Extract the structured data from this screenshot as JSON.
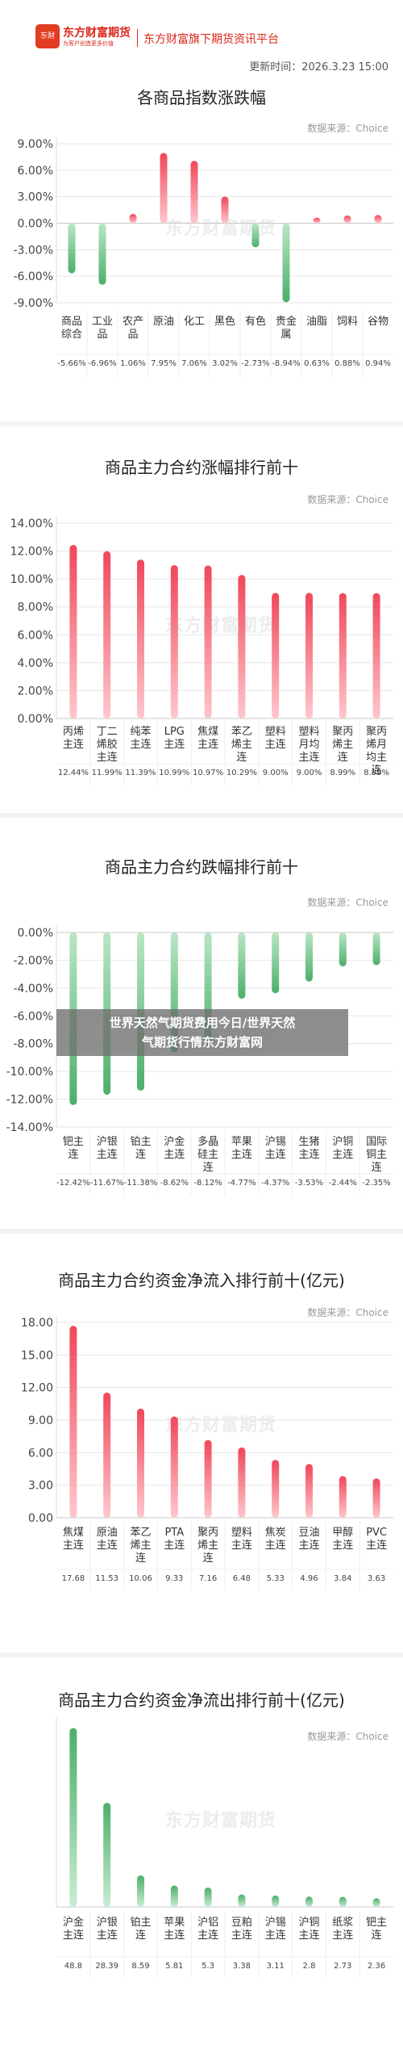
{
  "header": {
    "brand_name": "东方财富期货",
    "brand_sub": "为客户创造更多价值",
    "brand_badge": "东财",
    "title": "东方财富旗下期货资讯平台",
    "updated": "更新时间：2026.3.23 15:00"
  },
  "source_label": "数据来源：Choice",
  "watermark": "东方财富期货",
  "overlay": {
    "line1": "世界天然气期货费用今日/世界天然",
    "line2": "气期货行情东方财富网"
  },
  "colors": {
    "up": "#f0475a",
    "down": "#4caf6a"
  },
  "chart_data": [
    {
      "type": "bar",
      "title": "各商品指数涨跌幅",
      "categories": [
        [
          "商品",
          "综合"
        ],
        [
          "工业",
          "品"
        ],
        [
          "农产",
          "品"
        ],
        [
          "原油"
        ],
        [
          "化工"
        ],
        [
          "黑色"
        ],
        [
          "有色"
        ],
        [
          "贵金",
          "属"
        ],
        [
          "油脂"
        ],
        [
          "饲料"
        ],
        [
          "谷物"
        ]
      ],
      "values": [
        -5.66,
        -6.96,
        1.06,
        7.95,
        7.06,
        3.02,
        -2.73,
        -8.94,
        0.63,
        0.88,
        0.94
      ],
      "value_labels": [
        "-5.66%",
        "-6.96%",
        "1.06%",
        "7.95%",
        "7.06%",
        "3.02%",
        "-2.73%",
        "-8.94%",
        "0.63%",
        "0.88%",
        "0.94%"
      ],
      "yticks": [
        "9.00%",
        "6.00%",
        "3.00%",
        "0.00%",
        "-3.00%",
        "-6.00%",
        "-9.00%"
      ],
      "ylim": [
        -9,
        9
      ]
    },
    {
      "type": "bar",
      "title": "商品主力合约涨幅排行前十",
      "categories": [
        [
          "丙烯",
          "主连"
        ],
        [
          "丁二",
          "烯胶",
          "主连"
        ],
        [
          "纯苯",
          "主连"
        ],
        [
          "LPG",
          "主连"
        ],
        [
          "焦煤",
          "主连"
        ],
        [
          "苯乙",
          "烯主",
          "连"
        ],
        [
          "塑料",
          "主连"
        ],
        [
          "塑料",
          "月均",
          "主连"
        ],
        [
          "聚丙",
          "烯主",
          "连"
        ],
        [
          "聚丙",
          "烯月",
          "均主",
          "连"
        ]
      ],
      "values": [
        12.44,
        11.99,
        11.39,
        10.99,
        10.97,
        10.29,
        9.0,
        9.0,
        8.99,
        8.99
      ],
      "value_labels": [
        "12.44%",
        "11.99%",
        "11.39%",
        "10.99%",
        "10.97%",
        "10.29%",
        "9.00%",
        "9.00%",
        "8.99%",
        "8.99%"
      ],
      "yticks": [
        "14.00%",
        "12.00%",
        "10.00%",
        "8.00%",
        "6.00%",
        "4.00%",
        "2.00%",
        "0.00%"
      ],
      "ylim": [
        0,
        14
      ]
    },
    {
      "type": "bar",
      "title": "商品主力合约跌幅排行前十",
      "categories": [
        [
          "钯主",
          "连"
        ],
        [
          "沪银",
          "主连"
        ],
        [
          "铂主",
          "连"
        ],
        [
          "沪金",
          "主连"
        ],
        [
          "多晶",
          "硅主",
          "连"
        ],
        [
          "苹果",
          "主连"
        ],
        [
          "沪锡",
          "主连"
        ],
        [
          "生猪",
          "主连"
        ],
        [
          "沪铜",
          "主连"
        ],
        [
          "国际",
          "铜主",
          "连"
        ]
      ],
      "values": [
        -12.42,
        -11.67,
        -11.38,
        -8.62,
        -8.12,
        -4.77,
        -4.37,
        -3.53,
        -2.44,
        -2.35
      ],
      "value_labels": [
        "-12.42%",
        "-11.67%",
        "-11.38%",
        "-8.62%",
        "-8.12%",
        "-4.77%",
        "-4.37%",
        "-3.53%",
        "-2.44%",
        "-2.35%"
      ],
      "yticks": [
        "0.00%",
        "-2.00%",
        "-4.00%",
        "-6.00%",
        "-8.00%",
        "-10.00%",
        "-12.00%",
        "-14.00%"
      ],
      "ylim": [
        -14,
        0
      ]
    },
    {
      "type": "bar",
      "title": "商品主力合约资金净流入排行前十(亿元)",
      "categories": [
        [
          "焦煤",
          "主连"
        ],
        [
          "原油",
          "主连"
        ],
        [
          "苯乙",
          "烯主",
          "连"
        ],
        [
          "PTA",
          "主连"
        ],
        [
          "聚丙",
          "烯主",
          "连"
        ],
        [
          "塑料",
          "主连"
        ],
        [
          "焦炭",
          "主连"
        ],
        [
          "豆油",
          "主连"
        ],
        [
          "甲醇",
          "主连"
        ],
        [
          "PVC",
          "主连"
        ]
      ],
      "values": [
        17.68,
        11.53,
        10.06,
        9.33,
        7.16,
        6.48,
        5.33,
        4.96,
        3.84,
        3.63
      ],
      "value_labels": [
        "17.68",
        "11.53",
        "10.06",
        "9.33",
        "7.16",
        "6.48",
        "5.33",
        "4.96",
        "3.84",
        "3.63"
      ],
      "yticks": [
        "18.00",
        "15.00",
        "12.00",
        "9.00",
        "6.00",
        "3.00",
        "0.00"
      ],
      "ylim": [
        0,
        18
      ]
    },
    {
      "type": "bar",
      "title": "商品主力合约资金净流出排行前十(亿元)",
      "categories": [
        [
          "沪金",
          "主连"
        ],
        [
          "沪银",
          "主连"
        ],
        [
          "铂主",
          "连"
        ],
        [
          "苹果",
          "主连"
        ],
        [
          "沪铝",
          "主连"
        ],
        [
          "豆粕",
          "主连"
        ],
        [
          "沪锡",
          "主连"
        ],
        [
          "沪铜",
          "主连"
        ],
        [
          "纸浆",
          "主连"
        ],
        [
          "钯主",
          "连"
        ]
      ],
      "values": [
        48.8,
        28.39,
        8.59,
        5.81,
        5.3,
        3.38,
        3.11,
        2.8,
        2.73,
        2.36
      ],
      "value_labels": [
        "48.8",
        "28.39",
        "8.59",
        "5.81",
        "5.3",
        "3.38",
        "3.11",
        "2.8",
        "2.73",
        "2.36"
      ],
      "yticks": [],
      "ylim": [
        0,
        50
      ]
    }
  ]
}
